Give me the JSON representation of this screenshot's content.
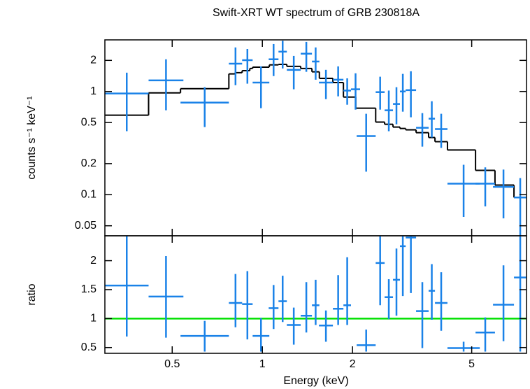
{
  "chart_data": [
    {
      "type": "errorbar",
      "title": "Swift-XRT WT spectrum of GRB 230818A",
      "ylabel": "counts s⁻¹ keV⁻¹",
      "xscale": "log",
      "yscale": "log",
      "xlim": [
        0.298,
        7.62
      ],
      "ylim": [
        0.04,
        3.16
      ],
      "xticks": [
        0.5,
        1,
        2,
        5
      ],
      "yticks": [
        0.05,
        0.1,
        0.2,
        0.5,
        1,
        2
      ],
      "points": {
        "color": "#1a82e8",
        "x_low": [
          0.298,
          0.417,
          0.533,
          0.773,
          0.856,
          0.928,
          1.05,
          1.132,
          1.207,
          1.343,
          1.464,
          1.545,
          1.72,
          1.865,
          1.977,
          2.065,
          2.39,
          2.56,
          2.73,
          2.88,
          3.01,
          3.26,
          3.59,
          3.77,
          4.15,
          5.15,
          5.89,
          6.92
        ],
        "x_high": [
          0.417,
          0.545,
          0.773,
          0.856,
          0.928,
          1.055,
          1.132,
          1.207,
          1.343,
          1.464,
          1.55,
          1.72,
          1.865,
          1.977,
          2.12,
          2.39,
          2.56,
          2.73,
          2.88,
          3.01,
          3.26,
          3.59,
          3.77,
          4.15,
          5.32,
          5.98,
          6.92,
          7.62
        ],
        "y": [
          0.955,
          1.28,
          0.78,
          1.86,
          2.01,
          1.22,
          2.05,
          2.43,
          1.62,
          2.32,
          1.95,
          1.22,
          1.3,
          1.02,
          1.05,
          0.37,
          0.985,
          0.657,
          0.756,
          1.0,
          1.03,
          0.445,
          0.545,
          0.432,
          0.128,
          0.128,
          0.119,
          0.094
        ],
        "y_low": [
          0.412,
          0.657,
          0.452,
          1.15,
          1.19,
          0.689,
          1.41,
          1.67,
          1.05,
          1.55,
          1.3,
          0.843,
          0.897,
          0.744,
          0.667,
          0.167,
          0.667,
          0.412,
          0.481,
          0.637,
          0.562,
          0.292,
          0.358,
          0.284,
          0.061,
          0.077,
          0.059,
          0.04
        ],
        "y_high": [
          1.52,
          2.05,
          1.1,
          2.67,
          2.58,
          1.75,
          2.88,
          3.1,
          2.21,
          3.02,
          2.67,
          1.62,
          1.75,
          1.34,
          1.5,
          0.608,
          1.39,
          1.02,
          1.1,
          1.48,
          1.57,
          0.617,
          0.804,
          0.608,
          0.195,
          0.184,
          0.175,
          0.145
        ]
      },
      "model": {
        "color": "#000000",
        "edges": [
          0.298,
          0.417,
          0.533,
          0.773,
          0.811,
          0.856,
          0.908,
          0.928,
          1.055,
          1.132,
          1.207,
          1.343,
          1.464,
          1.55,
          1.72,
          1.865,
          2.05,
          2.39,
          2.56,
          2.73,
          2.88,
          3.01,
          3.26,
          3.59,
          3.77,
          4.15,
          5.15,
          5.98,
          6.92,
          7.62
        ],
        "values": [
          0.589,
          0.969,
          1.064,
          1.48,
          1.52,
          1.59,
          1.67,
          1.72,
          1.81,
          1.83,
          1.75,
          1.67,
          1.55,
          1.34,
          1.22,
          0.883,
          0.689,
          0.505,
          0.481,
          0.452,
          0.438,
          0.425,
          0.399,
          0.358,
          0.326,
          0.271,
          0.172,
          0.124,
          0.094
        ]
      }
    },
    {
      "type": "errorbar",
      "ylabel": "ratio",
      "xlabel": "Energy (keV)",
      "xscale": "log",
      "yscale": "linear",
      "xlim": [
        0.298,
        7.62
      ],
      "ylim": [
        0.4,
        2.43
      ],
      "xticks": [
        0.5,
        1,
        2,
        5
      ],
      "yticks": [
        0.5,
        1,
        1.5,
        2
      ],
      "points": {
        "color": "#1a82e8",
        "x_low": [
          0.298,
          0.417,
          0.533,
          0.773,
          0.856,
          0.928,
          1.05,
          1.132,
          1.207,
          1.343,
          1.464,
          1.545,
          1.72,
          1.865,
          2.065,
          2.39,
          2.56,
          2.73,
          2.88,
          3.01,
          3.26,
          3.59,
          3.77,
          4.15,
          5.15,
          5.89,
          6.92
        ],
        "x_high": [
          0.417,
          0.545,
          0.773,
          0.856,
          0.928,
          1.055,
          1.132,
          1.207,
          1.343,
          1.464,
          1.55,
          1.72,
          1.865,
          1.977,
          2.39,
          2.56,
          2.73,
          2.88,
          3.01,
          3.26,
          3.59,
          3.77,
          4.15,
          5.32,
          5.98,
          6.92,
          7.62
        ],
        "y": [
          1.57,
          1.38,
          0.7,
          1.27,
          1.25,
          0.7,
          1.18,
          1.3,
          0.89,
          1.05,
          1.23,
          0.88,
          1.17,
          1.23,
          0.54,
          1.96,
          1.37,
          1.67,
          2.25,
          2.4,
          1.13,
          1.48,
          1.27,
          0.49,
          0.76,
          1.24,
          1.71
        ],
        "y_low": [
          0.69,
          0.67,
          0.43,
          0.85,
          0.64,
          0.43,
          0.82,
          0.94,
          0.55,
          0.76,
          0.89,
          0.6,
          0.89,
          0.89,
          0.43,
          1.23,
          0.99,
          1.05,
          1.39,
          1.44,
          0.49,
          0.98,
          0.79,
          0.43,
          0.43,
          0.61,
          0.43
        ],
        "y_high": [
          2.43,
          2.08,
          0.96,
          1.77,
          1.82,
          1.01,
          1.58,
          1.74,
          1.19,
          1.63,
          1.67,
          1.14,
          1.75,
          2.06,
          0.81,
          2.43,
          1.68,
          2.21,
          2.43,
          2.43,
          1.63,
          1.94,
          1.8,
          0.6,
          1.02,
          1.92,
          2.43
        ]
      },
      "reference_line": {
        "value": 1,
        "color": "#00e000"
      }
    }
  ]
}
